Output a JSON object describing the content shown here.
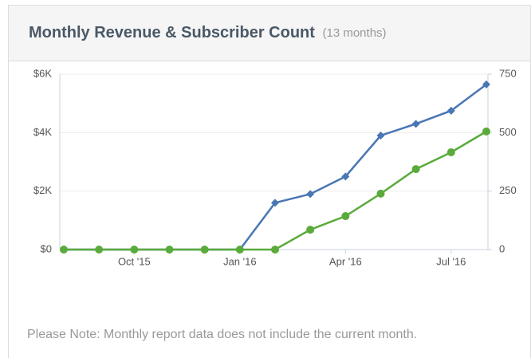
{
  "chart_data": {
    "type": "line",
    "title": "Monthly Revenue & Subscriber Count",
    "subtitle": "(13 months)",
    "note": "Please Note: Monthly report data does not include the current month.",
    "categories": [
      null,
      null,
      "Oct '15",
      null,
      null,
      "Jan '16",
      null,
      null,
      "Apr '16",
      null,
      null,
      "Jul '16",
      null
    ],
    "series": [
      {
        "color": "#4a76b4",
        "marker": "diamond",
        "values": [
          0,
          0,
          0,
          0,
          0,
          0,
          1600,
          1900,
          2500,
          3900,
          4300,
          4750,
          5650
        ]
      },
      {
        "color": "#5aab3c",
        "marker": "circle",
        "axis": "y2",
        "values": [
          0,
          0,
          0,
          0,
          0,
          0,
          0,
          85,
          143,
          239,
          344,
          416,
          505
        ]
      }
    ],
    "ylim": [
      0,
      6000
    ],
    "yticks": [
      {
        "value": 0,
        "label": "$0"
      },
      {
        "value": 2000,
        "label": "$2K"
      },
      {
        "value": 4000,
        "label": "$4K"
      },
      {
        "value": 6000,
        "label": "$6K"
      }
    ],
    "y2lim": [
      0,
      750
    ],
    "y2ticks": [
      0,
      250,
      500,
      750
    ],
    "grid": true
  }
}
